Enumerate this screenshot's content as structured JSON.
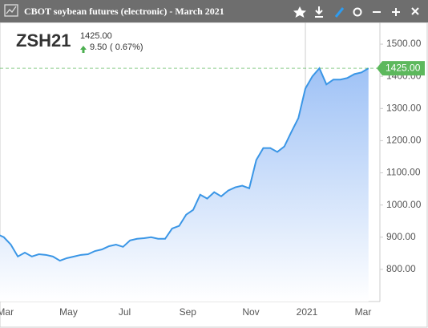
{
  "window_title": "CBOT soybean futures (electronic) - March 2021",
  "chart_data": {
    "type": "area",
    "symbol": "ZSH21",
    "last": "1425.00",
    "change": "9.50",
    "change_pct": "( 0.67%)",
    "color": "#3a96e6",
    "categories": [
      null,
      "Mar",
      null,
      null,
      null,
      null,
      null,
      null,
      null,
      null,
      "May",
      null,
      null,
      null,
      null,
      null,
      null,
      null,
      "Jul",
      null,
      null,
      null,
      null,
      null,
      null,
      null,
      null,
      "Sep",
      null,
      null,
      null,
      null,
      null,
      null,
      null,
      null,
      "Nov",
      null,
      null,
      null,
      null,
      null,
      null,
      null,
      "2021",
      null,
      null,
      null,
      null,
      null,
      null,
      null,
      "Mar",
      null
    ],
    "values": [
      910,
      900,
      877,
      840,
      852,
      840,
      847,
      845,
      840,
      827,
      835,
      840,
      845,
      847,
      857,
      862,
      872,
      877,
      870,
      890,
      895,
      897,
      900,
      895,
      895,
      927,
      935,
      970,
      985,
      1032,
      1020,
      1040,
      1027,
      1045,
      1055,
      1060,
      1052,
      1140,
      1177,
      1177,
      1165,
      1182,
      1227,
      1270,
      1362,
      1400,
      1425,
      1375,
      1390,
      1390,
      1395,
      1407,
      1412,
      1425
    ],
    "ylim": [
      700,
      1550
    ],
    "yticks": [
      {
        "value": 800,
        "label": "800.00"
      },
      {
        "value": 900,
        "label": "900.00"
      },
      {
        "value": 1000,
        "label": "1000.00"
      },
      {
        "value": 1100,
        "label": "1100.00"
      },
      {
        "value": 1200,
        "label": "1200.00"
      },
      {
        "value": 1300,
        "label": "1300.00"
      },
      {
        "value": 1400,
        "label": "1400.00"
      },
      {
        "value": 1500,
        "label": "1500.00"
      }
    ],
    "price_line": {
      "value": 1425,
      "label": "1425.00",
      "color": "#5cb85c"
    }
  }
}
